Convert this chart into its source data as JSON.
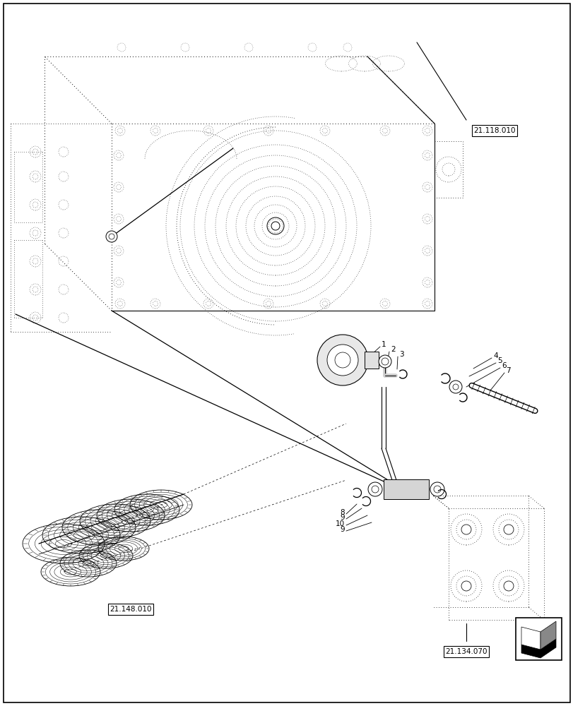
{
  "bg_color": "#ffffff",
  "line_color": "#000000",
  "ref_label_top_right": "21.118.010",
  "ref_label_bottom_left": "21.148.010",
  "ref_label_bottom_right": "21.134.070",
  "figsize": [
    8.12,
    10.0
  ],
  "dpi": 100,
  "lw_main": 0.8,
  "lw_thick": 1.2,
  "lw_dot": 0.5,
  "dot_style": "dotted"
}
